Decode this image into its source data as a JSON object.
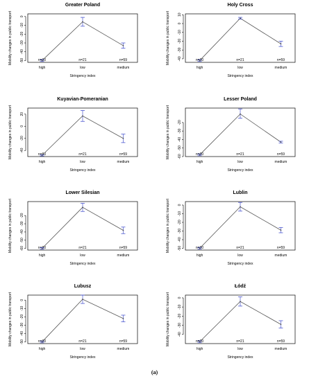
{
  "caption": "(a)",
  "colors": {
    "line": "#555555",
    "error_bar": "#4a56cf",
    "axis": "#000000"
  },
  "chart_data": [
    {
      "type": "line",
      "title": "Greater Poland",
      "xlabel": "Stringency index",
      "ylabel": "Mobility changes in public transport",
      "categories": [
        "high",
        "low",
        "medium"
      ],
      "n_labels": [
        "n=60",
        "n=21",
        "n=59"
      ],
      "values": [
        -50,
        -6,
        -33
      ],
      "error_low": [
        -51,
        -11,
        -36
      ],
      "error_high": [
        -49,
        -1,
        -30
      ],
      "yticks": [
        -50,
        -40,
        -30,
        -20,
        -10,
        0
      ],
      "ylim": [
        -52,
        3
      ]
    },
    {
      "type": "line",
      "title": "Holy Cross",
      "xlabel": "Stringency index",
      "ylabel": "Mobility changes in public transport",
      "categories": [
        "high",
        "low",
        "medium"
      ],
      "n_labels": [
        "n=60",
        "n=21",
        "n=59"
      ],
      "values": [
        -42,
        6,
        -23
      ],
      "error_low": [
        -43,
        5,
        -26
      ],
      "error_high": [
        -41,
        7,
        -20
      ],
      "yticks": [
        -40,
        -30,
        -20,
        -10,
        0,
        10
      ],
      "ylim": [
        -44,
        11
      ]
    },
    {
      "type": "line",
      "title": "Kuyavian-Pomeranian",
      "xlabel": "Stringency index",
      "ylabel": "Mobility changes in public transport",
      "categories": [
        "high",
        "low",
        "medium"
      ],
      "n_labels": [
        "n=60",
        "n=21",
        "n=59"
      ],
      "values": [
        -48,
        17,
        -20
      ],
      "error_low": [
        -49,
        8,
        -27
      ],
      "error_high": [
        -47,
        26,
        -13
      ],
      "yticks": [
        -40,
        -20,
        0,
        20
      ],
      "ylim": [
        -50,
        30
      ]
    },
    {
      "type": "line",
      "title": "Lesser Poland",
      "xlabel": "Stringency index",
      "ylabel": "Mobility changes in public transport",
      "categories": [
        "high",
        "low",
        "medium"
      ],
      "n_labels": [
        "n=60",
        "n=21",
        "n=59"
      ],
      "values": [
        -58,
        -10,
        -43
      ],
      "error_low": [
        -59,
        -15,
        -44
      ],
      "error_high": [
        -57,
        -4,
        -42
      ],
      "yticks": [
        -60,
        -50,
        -40,
        -30,
        -20
      ],
      "ylim": [
        -60,
        -3
      ]
    },
    {
      "type": "line",
      "title": "Lower Silesian",
      "xlabel": "Stringency index",
      "ylabel": "Mobility changes in public transport",
      "categories": [
        "high",
        "low",
        "medium"
      ],
      "n_labels": [
        "n=60",
        "n=21",
        "n=59"
      ],
      "values": [
        -60,
        -10,
        -38
      ],
      "error_low": [
        -61,
        -15,
        -42
      ],
      "error_high": [
        -59,
        -5,
        -34
      ],
      "yticks": [
        -60,
        -50,
        -40,
        -30,
        -20
      ],
      "ylim": [
        -62,
        -3
      ]
    },
    {
      "type": "line",
      "title": "Lublin",
      "xlabel": "Stringency index",
      "ylabel": "Mobility changes in public transport",
      "categories": [
        "high",
        "low",
        "medium"
      ],
      "n_labels": [
        "n=60",
        "n=21",
        "n=59"
      ],
      "values": [
        -50,
        -2,
        -29
      ],
      "error_low": [
        -51,
        -7,
        -32
      ],
      "error_high": [
        -49,
        3,
        -26
      ],
      "yticks": [
        -50,
        -40,
        -30,
        -20,
        -10,
        0
      ],
      "ylim": [
        -52,
        4
      ]
    },
    {
      "type": "line",
      "title": "Lubusz",
      "xlabel": "Stringency index",
      "ylabel": "Mobility changes in public transport",
      "categories": [
        "high",
        "low",
        "medium"
      ],
      "n_labels": [
        "n=60",
        "n=21",
        "n=59"
      ],
      "values": [
        -50,
        1,
        -22
      ],
      "error_low": [
        -51,
        -4,
        -26
      ],
      "error_high": [
        -49,
        6,
        -18
      ],
      "yticks": [
        -50,
        -40,
        -30,
        -20,
        -10,
        0
      ],
      "ylim": [
        -52,
        6
      ]
    },
    {
      "type": "line",
      "title": "Łódź",
      "xlabel": "Stringency index",
      "ylabel": "Mobility changes in public transport",
      "categories": [
        "high",
        "low",
        "medium"
      ],
      "n_labels": [
        "n=60",
        "n=21",
        "n=59"
      ],
      "values": [
        -48,
        -4,
        -29
      ],
      "error_low": [
        -49,
        -9,
        -33
      ],
      "error_high": [
        -47,
        1,
        -25
      ],
      "yticks": [
        -40,
        -30,
        -20,
        -10,
        0
      ],
      "ylim": [
        -50,
        3
      ]
    }
  ]
}
